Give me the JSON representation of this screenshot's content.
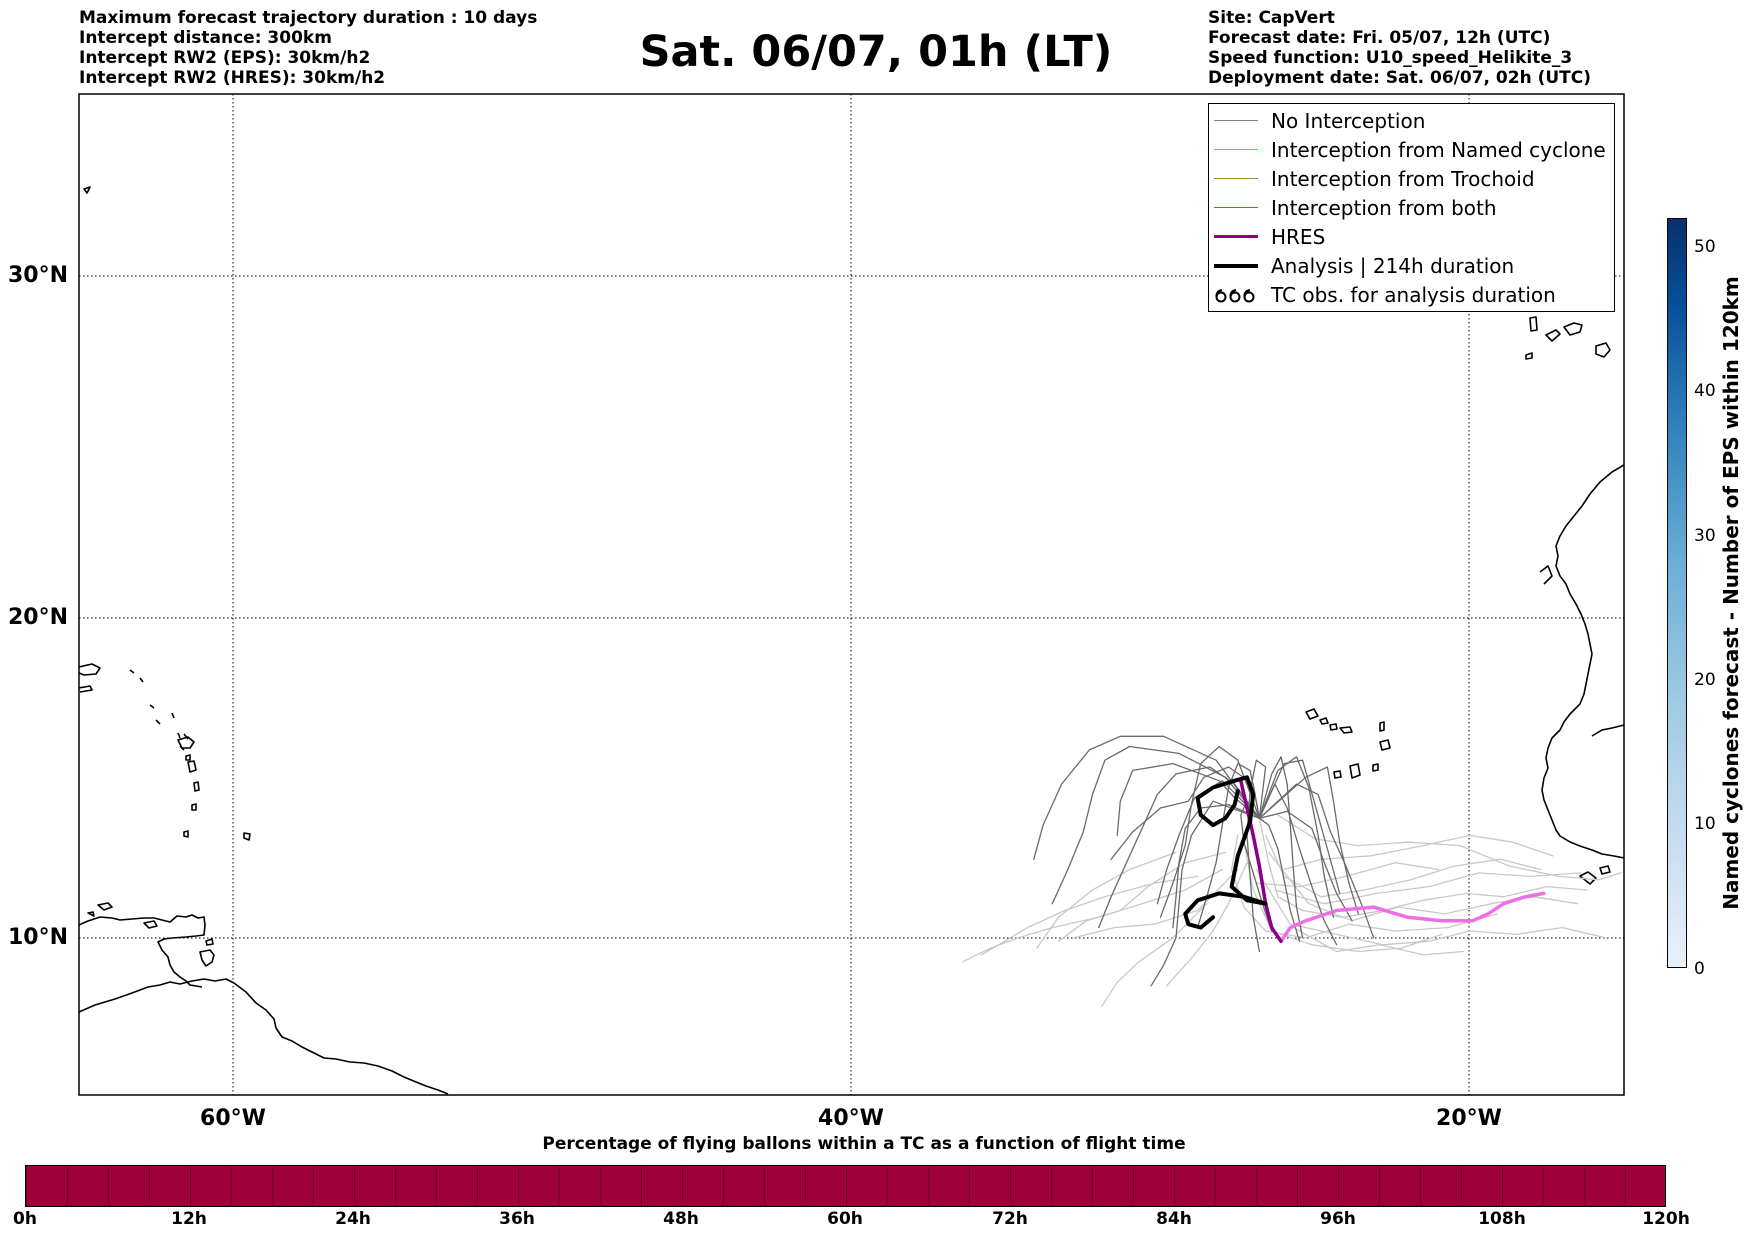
{
  "header_left": [
    "Maximum forecast trajectory duration : 10 days",
    "Intercept distance: 300km",
    "Intercept RW2 (EPS):  30km/h2",
    "Intercept RW2 (HRES): 30km/h2"
  ],
  "title": "Sat. 06/07, 01h (LT)",
  "header_right": [
    "Site: CapVert",
    "Forecast date: Fri. 05/07, 12h (UTC)",
    "Speed function: U10_speed_Helikite_3",
    "Deployment date: Sat. 06/07, 02h (UTC)"
  ],
  "map": {
    "lat_labels": [
      "30°N",
      "20°N",
      "10°N"
    ],
    "lon_labels": [
      "60°W",
      "40°W",
      "20°W"
    ],
    "grid": "on",
    "extent": {
      "lon": [
        -65,
        -15
      ],
      "lat": [
        5.4,
        34.7
      ]
    }
  },
  "legend": {
    "placement": "top-right",
    "items": [
      {
        "label": "No Interception",
        "color": "#808080",
        "width": 1.3,
        "symbol": "line"
      },
      {
        "label": "Interception from Named cyclone",
        "color": "#ff7f50",
        "width": 1.3,
        "symbol": "line"
      },
      {
        "label": "Interception from Trochoid",
        "color": "#a0912e",
        "width": 1.3,
        "symbol": "line"
      },
      {
        "label": "Interception from both",
        "color": "#2ca02c",
        "width": 1.3,
        "symbol": "line"
      },
      {
        "label": "HRES",
        "color": "#8b008b",
        "width": 3.5,
        "symbol": "line"
      },
      {
        "label": "Analysis | 214h duration",
        "color": "#000000",
        "width": 4,
        "symbol": "line"
      },
      {
        "label": "TC obs. for analysis duration",
        "color": "#000000",
        "width": 1.5,
        "symbol": "tc-icon"
      }
    ]
  },
  "colorbar_right": {
    "label": "Named cyclones forecast - Number of EPS within 120km",
    "ticks": [
      "0",
      "10",
      "20",
      "30",
      "40",
      "50"
    ],
    "range": [
      0,
      52
    ],
    "colors": [
      "#e8f1fa",
      "#08306b"
    ]
  },
  "colorbar_bottom": {
    "title": "Percentage of flying ballons within a TC as a function of flight time",
    "ticks": [
      "0h",
      "12h",
      "24h",
      "36h",
      "48h",
      "60h",
      "72h",
      "84h",
      "96h",
      "108h",
      "120h"
    ],
    "fill_color": "#a0003a"
  },
  "trajectories": {
    "analysis": [
      [
        -27.5,
        14.3
      ],
      [
        -27.6,
        13.9
      ],
      [
        -27.9,
        13.5
      ],
      [
        -28.3,
        13.3
      ],
      [
        -28.7,
        13.6
      ],
      [
        -28.8,
        14.1
      ],
      [
        -28.3,
        14.4
      ],
      [
        -27.6,
        14.6
      ],
      [
        -27.2,
        14.7
      ],
      [
        -27.0,
        14.2
      ],
      [
        -27.1,
        13.4
      ],
      [
        -27.5,
        12.4
      ],
      [
        -27.7,
        11.5
      ],
      [
        -27.2,
        11.1
      ],
      [
        -26.6,
        11.0
      ],
      [
        -27.3,
        11.2
      ],
      [
        -28.1,
        11.3
      ],
      [
        -28.8,
        11.1
      ],
      [
        -29.2,
        10.7
      ],
      [
        -29.1,
        10.4
      ],
      [
        -28.7,
        10.3
      ],
      [
        -28.3,
        10.6
      ]
    ],
    "hres": [
      [
        -27.4,
        14.6
      ],
      [
        -27.2,
        13.8
      ],
      [
        -27.0,
        13.0
      ],
      [
        -26.8,
        12.1
      ],
      [
        -26.6,
        11.0
      ],
      [
        -26.4,
        10.3
      ],
      [
        -26.1,
        9.9
      ],
      [
        -25.8,
        10.3
      ],
      [
        -25.3,
        10.5
      ],
      [
        -24.3,
        10.8
      ],
      [
        -23.1,
        10.9
      ],
      [
        -22.0,
        10.6
      ],
      [
        -20.9,
        10.5
      ],
      [
        -19.9,
        10.5
      ],
      [
        -19.4,
        10.7
      ],
      [
        -18.9,
        11.0
      ],
      [
        -18.2,
        11.2
      ],
      [
        -17.6,
        11.3
      ]
    ],
    "light_tracks": [
      [
        [
          -26.8,
          13.5
        ],
        [
          -26.5,
          12.2
        ],
        [
          -26.2,
          11.2
        ],
        [
          -25.4,
          10.8
        ],
        [
          -24.1,
          10.6
        ],
        [
          -22.8,
          10.8
        ],
        [
          -21.5,
          11.1
        ],
        [
          -20.1,
          11.3
        ],
        [
          -18.9,
          11.2
        ],
        [
          -17.5,
          11.5
        ],
        [
          -16.2,
          11.4
        ]
      ],
      [
        [
          -26.6,
          13.0
        ],
        [
          -26.0,
          11.8
        ],
        [
          -24.8,
          11.2
        ],
        [
          -23.4,
          11.4
        ],
        [
          -21.9,
          11.7
        ],
        [
          -20.5,
          12.1
        ],
        [
          -19.0,
          12.3
        ],
        [
          -17.7,
          12.0
        ]
      ],
      [
        [
          -26.9,
          12.0
        ],
        [
          -25.8,
          10.4
        ],
        [
          -24.3,
          10.1
        ],
        [
          -22.8,
          9.8
        ],
        [
          -21.3,
          9.9
        ],
        [
          -20.0,
          10.2
        ],
        [
          -18.5,
          10.1
        ],
        [
          -17.0,
          10.3
        ],
        [
          -15.6,
          10.0
        ]
      ],
      [
        [
          -27.3,
          12.8
        ],
        [
          -27.0,
          11.4
        ],
        [
          -26.4,
          10.2
        ],
        [
          -25.1,
          9.8
        ],
        [
          -23.6,
          9.6
        ],
        [
          -22.2,
          9.7
        ],
        [
          -20.9,
          10.1
        ]
      ],
      [
        [
          -26.5,
          12.5
        ],
        [
          -25.2,
          11.0
        ],
        [
          -23.8,
          10.5
        ],
        [
          -22.3,
          10.9
        ],
        [
          -20.8,
          10.7
        ],
        [
          -19.3,
          11.0
        ],
        [
          -17.9,
          11.2
        ],
        [
          -16.5,
          11.0
        ]
      ],
      [
        [
          -27.5,
          13.0
        ],
        [
          -27.7,
          12.0
        ],
        [
          -27.3,
          10.9
        ],
        [
          -26.6,
          10.2
        ],
        [
          -25.3,
          10.0
        ],
        [
          -23.9,
          10.4
        ],
        [
          -22.4,
          10.2
        ],
        [
          -20.7,
          10.3
        ],
        [
          -19.1,
          10.7
        ]
      ],
      [
        [
          -28.0,
          12.0
        ],
        [
          -29.2,
          11.4
        ],
        [
          -30.6,
          11.0
        ],
        [
          -32.0,
          10.6
        ],
        [
          -33.5,
          10.3
        ],
        [
          -34.6,
          10.0
        ],
        [
          -35.5,
          9.7
        ],
        [
          -36.4,
          9.3
        ]
      ],
      [
        [
          -28.8,
          11.8
        ],
        [
          -30.2,
          11.6
        ],
        [
          -31.8,
          11.2
        ],
        [
          -33.1,
          10.8
        ],
        [
          -34.3,
          10.3
        ],
        [
          -35.8,
          9.5
        ]
      ],
      [
        [
          -29.5,
          12.5
        ],
        [
          -31.0,
          12.0
        ],
        [
          -32.2,
          11.4
        ],
        [
          -33.3,
          10.6
        ],
        [
          -34.0,
          9.7
        ]
      ],
      [
        [
          -28.5,
          11.0
        ],
        [
          -29.6,
          10.0
        ],
        [
          -30.7,
          9.3
        ],
        [
          -31.4,
          8.7
        ],
        [
          -31.9,
          8.0
        ]
      ],
      [
        [
          -27.5,
          12.0
        ],
        [
          -28.8,
          10.8
        ],
        [
          -30.2,
          10.4
        ],
        [
          -31.5,
          10.3
        ],
        [
          -32.8,
          10.0
        ]
      ],
      [
        [
          -26.0,
          12.0
        ],
        [
          -24.8,
          12.3
        ],
        [
          -23.2,
          12.4
        ],
        [
          -21.5,
          12.7
        ],
        [
          -20.0,
          13.0
        ],
        [
          -18.6,
          12.8
        ],
        [
          -17.3,
          12.4
        ]
      ],
      [
        [
          -26.9,
          11.6
        ],
        [
          -25.5,
          11.5
        ],
        [
          -24.0,
          11.8
        ],
        [
          -22.4,
          12.2
        ],
        [
          -21.0,
          12.0
        ]
      ],
      [
        [
          -25.7,
          10.3
        ],
        [
          -24.3,
          9.6
        ],
        [
          -22.9,
          9.8
        ],
        [
          -21.5,
          9.5
        ],
        [
          -20.2,
          9.6
        ]
      ],
      [
        [
          -26.2,
          13.6
        ],
        [
          -25.0,
          12.9
        ],
        [
          -23.6,
          12.7
        ],
        [
          -22.0,
          12.8
        ],
        [
          -20.3,
          12.7
        ],
        [
          -18.7,
          12.1
        ],
        [
          -17.1,
          11.8
        ],
        [
          -15.8,
          11.7
        ],
        [
          -15.1,
          11.9
        ]
      ],
      [
        [
          -27.9,
          12.5
        ],
        [
          -29.2,
          12.2
        ],
        [
          -30.4,
          11.5
        ],
        [
          -31.3,
          10.8
        ],
        [
          -32.4,
          10.5
        ],
        [
          -33.3,
          9.9
        ]
      ],
      [
        [
          -27.2,
          12.2
        ],
        [
          -27.8,
          11.0
        ],
        [
          -28.3,
          10.2
        ],
        [
          -29.0,
          9.4
        ],
        [
          -29.8,
          8.6
        ]
      ],
      [
        [
          -26.3,
          11.4
        ],
        [
          -24.7,
          11.0
        ],
        [
          -23.0,
          11.3
        ],
        [
          -21.3,
          11.5
        ],
        [
          -19.7,
          11.9
        ],
        [
          -18.0,
          11.8
        ],
        [
          -16.4,
          11.9
        ]
      ]
    ],
    "dark_tracks": [
      [
        [
          -26.8,
          13.5
        ],
        [
          -27.6,
          14.5
        ],
        [
          -28.4,
          15.0
        ],
        [
          -29.5,
          14.8
        ],
        [
          -30.1,
          14.2
        ],
        [
          -30.6,
          13.2
        ],
        [
          -31.1,
          12.2
        ],
        [
          -31.6,
          11.2
        ],
        [
          -32.0,
          10.3
        ]
      ],
      [
        [
          -26.8,
          13.5
        ],
        [
          -27.9,
          14.7
        ],
        [
          -29.4,
          15.4
        ],
        [
          -31.0,
          15.6
        ],
        [
          -31.8,
          15.2
        ],
        [
          -32.2,
          14.2
        ],
        [
          -32.5,
          13.1
        ],
        [
          -33.0,
          12.0
        ],
        [
          -33.5,
          11.0
        ]
      ],
      [
        [
          -26.8,
          13.5
        ],
        [
          -28.2,
          15.2
        ],
        [
          -29.9,
          15.9
        ],
        [
          -31.3,
          15.9
        ],
        [
          -32.3,
          15.5
        ],
        [
          -33.2,
          14.5
        ],
        [
          -33.8,
          13.3
        ],
        [
          -34.1,
          12.3
        ]
      ],
      [
        [
          -26.8,
          13.5
        ],
        [
          -28.0,
          14.6
        ],
        [
          -28.9,
          14.1
        ],
        [
          -29.4,
          13.0
        ],
        [
          -29.8,
          12.0
        ],
        [
          -30.1,
          11.0
        ]
      ],
      [
        [
          -26.8,
          13.5
        ],
        [
          -27.1,
          14.9
        ],
        [
          -27.5,
          15.1
        ],
        [
          -27.8,
          14.4
        ],
        [
          -28.0,
          13.3
        ],
        [
          -28.2,
          12.2
        ],
        [
          -28.5,
          11.2
        ],
        [
          -28.8,
          10.3
        ]
      ],
      [
        [
          -26.8,
          13.5
        ],
        [
          -26.4,
          14.8
        ],
        [
          -26.1,
          15.3
        ],
        [
          -25.9,
          14.5
        ],
        [
          -25.8,
          13.3
        ],
        [
          -25.7,
          12.0
        ],
        [
          -25.6,
          10.9
        ],
        [
          -25.4,
          10.0
        ]
      ],
      [
        [
          -26.8,
          13.5
        ],
        [
          -26.2,
          14.9
        ],
        [
          -25.6,
          15.3
        ],
        [
          -25.2,
          14.4
        ],
        [
          -24.9,
          13.0
        ],
        [
          -24.7,
          11.8
        ],
        [
          -24.4,
          10.6
        ]
      ],
      [
        [
          -26.8,
          13.5
        ],
        [
          -25.6,
          14.5
        ],
        [
          -24.9,
          14.2
        ],
        [
          -24.5,
          13.1
        ],
        [
          -24.0,
          12.1
        ],
        [
          -23.5,
          11.0
        ],
        [
          -23.1,
          10.0
        ]
      ],
      [
        [
          -26.8,
          13.5
        ],
        [
          -26.5,
          13.3
        ],
        [
          -26.2,
          12.6
        ],
        [
          -26.0,
          11.7
        ],
        [
          -25.8,
          10.8
        ],
        [
          -25.5,
          9.9
        ]
      ],
      [
        [
          -26.8,
          13.5
        ],
        [
          -27.2,
          14.0
        ],
        [
          -27.4,
          13.6
        ],
        [
          -27.3,
          12.8
        ],
        [
          -27.0,
          11.9
        ],
        [
          -26.7,
          11.0
        ],
        [
          -26.4,
          10.2
        ]
      ],
      [
        [
          -26.8,
          13.5
        ],
        [
          -27.8,
          13.9
        ],
        [
          -28.7,
          13.8
        ],
        [
          -29.2,
          13.2
        ],
        [
          -29.4,
          12.2
        ],
        [
          -29.5,
          11.2
        ],
        [
          -29.6,
          10.3
        ]
      ],
      [
        [
          -26.8,
          13.5
        ],
        [
          -27.5,
          15.2
        ],
        [
          -28.1,
          15.6
        ],
        [
          -28.7,
          15.1
        ],
        [
          -29.0,
          13.9
        ],
        [
          -29.2,
          12.7
        ],
        [
          -29.6,
          11.6
        ],
        [
          -30.0,
          10.6
        ]
      ],
      [
        [
          -26.8,
          13.5
        ],
        [
          -26.0,
          15.1
        ],
        [
          -25.4,
          15.2
        ],
        [
          -25.0,
          13.9
        ],
        [
          -24.6,
          12.6
        ],
        [
          -24.2,
          11.3
        ]
      ],
      [
        [
          -26.8,
          13.5
        ],
        [
          -25.9,
          13.7
        ],
        [
          -25.1,
          13.2
        ],
        [
          -24.7,
          12.2
        ],
        [
          -24.3,
          11.3
        ],
        [
          -23.8,
          10.5
        ]
      ],
      [
        [
          -26.8,
          13.5
        ],
        [
          -27.0,
          14.5
        ],
        [
          -27.8,
          15.0
        ],
        [
          -28.6,
          14.7
        ],
        [
          -29.1,
          14.0
        ],
        [
          -30.0,
          13.8
        ],
        [
          -30.9,
          13.1
        ],
        [
          -31.6,
          12.3
        ]
      ],
      [
        [
          -26.8,
          13.5
        ],
        [
          -28.3,
          14.0
        ],
        [
          -29.0,
          13.0
        ],
        [
          -29.3,
          12.0
        ],
        [
          -29.4,
          11.0
        ],
        [
          -29.5,
          10.0
        ],
        [
          -29.9,
          9.2
        ],
        [
          -30.3,
          8.6
        ]
      ],
      [
        [
          -26.8,
          13.5
        ],
        [
          -26.6,
          15.0
        ],
        [
          -26.9,
          15.2
        ],
        [
          -27.1,
          14.3
        ],
        [
          -27.2,
          13.0
        ],
        [
          -27.1,
          11.8
        ],
        [
          -27.0,
          10.6
        ],
        [
          -26.8,
          9.6
        ]
      ],
      [
        [
          -26.8,
          13.5
        ],
        [
          -25.3,
          14.7
        ],
        [
          -24.6,
          15.0
        ],
        [
          -24.4,
          14.0
        ],
        [
          -24.2,
          12.8
        ],
        [
          -23.9,
          11.6
        ],
        [
          -23.6,
          10.7
        ]
      ],
      [
        [
          -26.8,
          13.5
        ],
        [
          -27.6,
          14.1
        ],
        [
          -28.1,
          14.6
        ],
        [
          -29.6,
          15.1
        ],
        [
          -30.9,
          14.9
        ],
        [
          -31.3,
          14.0
        ],
        [
          -31.4,
          13.0
        ]
      ],
      [
        [
          -26.8,
          13.5
        ],
        [
          -26.3,
          14.5
        ],
        [
          -25.9,
          13.8
        ],
        [
          -25.5,
          12.6
        ],
        [
          -25.1,
          11.5
        ],
        [
          -24.7,
          10.5
        ],
        [
          -24.3,
          9.8
        ]
      ]
    ]
  }
}
